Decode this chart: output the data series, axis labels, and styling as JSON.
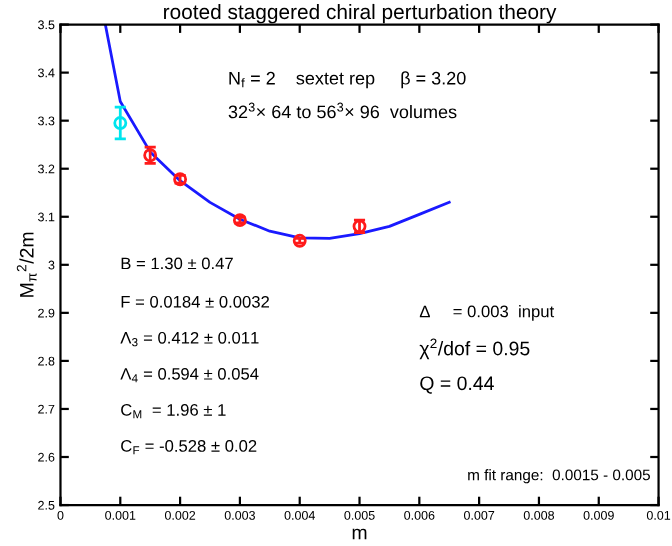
{
  "chart_data": {
    "type": "scatter",
    "title": "rooted staggered chiral perturbation theory",
    "xlabel": "m",
    "ylabel": "M$_{π}$$^{2}$/2m",
    "xlim": [
      0,
      0.01
    ],
    "ylim": [
      2.5,
      3.5
    ],
    "xticks": [
      0,
      0.001,
      0.002,
      0.003,
      0.004,
      0.005,
      0.006,
      0.007,
      0.008,
      0.009,
      0.01
    ],
    "yticks": [
      2.5,
      2.6,
      2.7,
      2.8,
      2.9,
      3,
      3.1,
      3.2,
      3.3,
      3.4,
      3.5
    ],
    "grid": false,
    "legend": false,
    "series": [
      {
        "type": "line",
        "color": "#1a1aff",
        "x": [
          0.00075,
          0.001,
          0.0015,
          0.002,
          0.0025,
          0.003,
          0.0035,
          0.004,
          0.0045,
          0.005,
          0.0055,
          0.006,
          0.0065
        ],
        "values": [
          3.5,
          3.34,
          3.235,
          3.175,
          3.13,
          3.095,
          3.07,
          3.056,
          3.055,
          3.065,
          3.08,
          3.105,
          3.13
        ]
      },
      {
        "color": "#00e5ee",
        "marker": "circle",
        "x": [
          0.001
        ],
        "values": [
          3.295
        ],
        "errors": [
          0.033
        ]
      },
      {
        "color": "#ff1a1a",
        "marker": "circle",
        "x": [
          0.0015,
          0.002,
          0.003,
          0.004,
          0.005
        ],
        "values": [
          3.228,
          3.178,
          3.093,
          3.05,
          3.08
        ],
        "errors": [
          0.017,
          0.008,
          0.006,
          0.005,
          0.013
        ]
      }
    ],
    "annotations": [
      "N$_{f}$ = 2    sextet rep     β = 3.20",
      "32$^{3}$× 64 to 56$^{3}$× 96  volumes",
      "B = 1.30 ± 0.47",
      "F = 0.0184 ± 0.0032",
      "Λ$_{3}$ = 0.412 ± 0.011",
      "Λ$_{4}$ = 0.594 ± 0.054",
      "C$_{M}$  = 1.96 ± 1",
      "C$_{F}$ = -0.528 ± 0.02",
      "Δ     = 0.003  input",
      "χ$^{2}$/dof = 0.95",
      "Q = 0.44",
      "m fit range:  0.0015 - 0.005"
    ]
  }
}
